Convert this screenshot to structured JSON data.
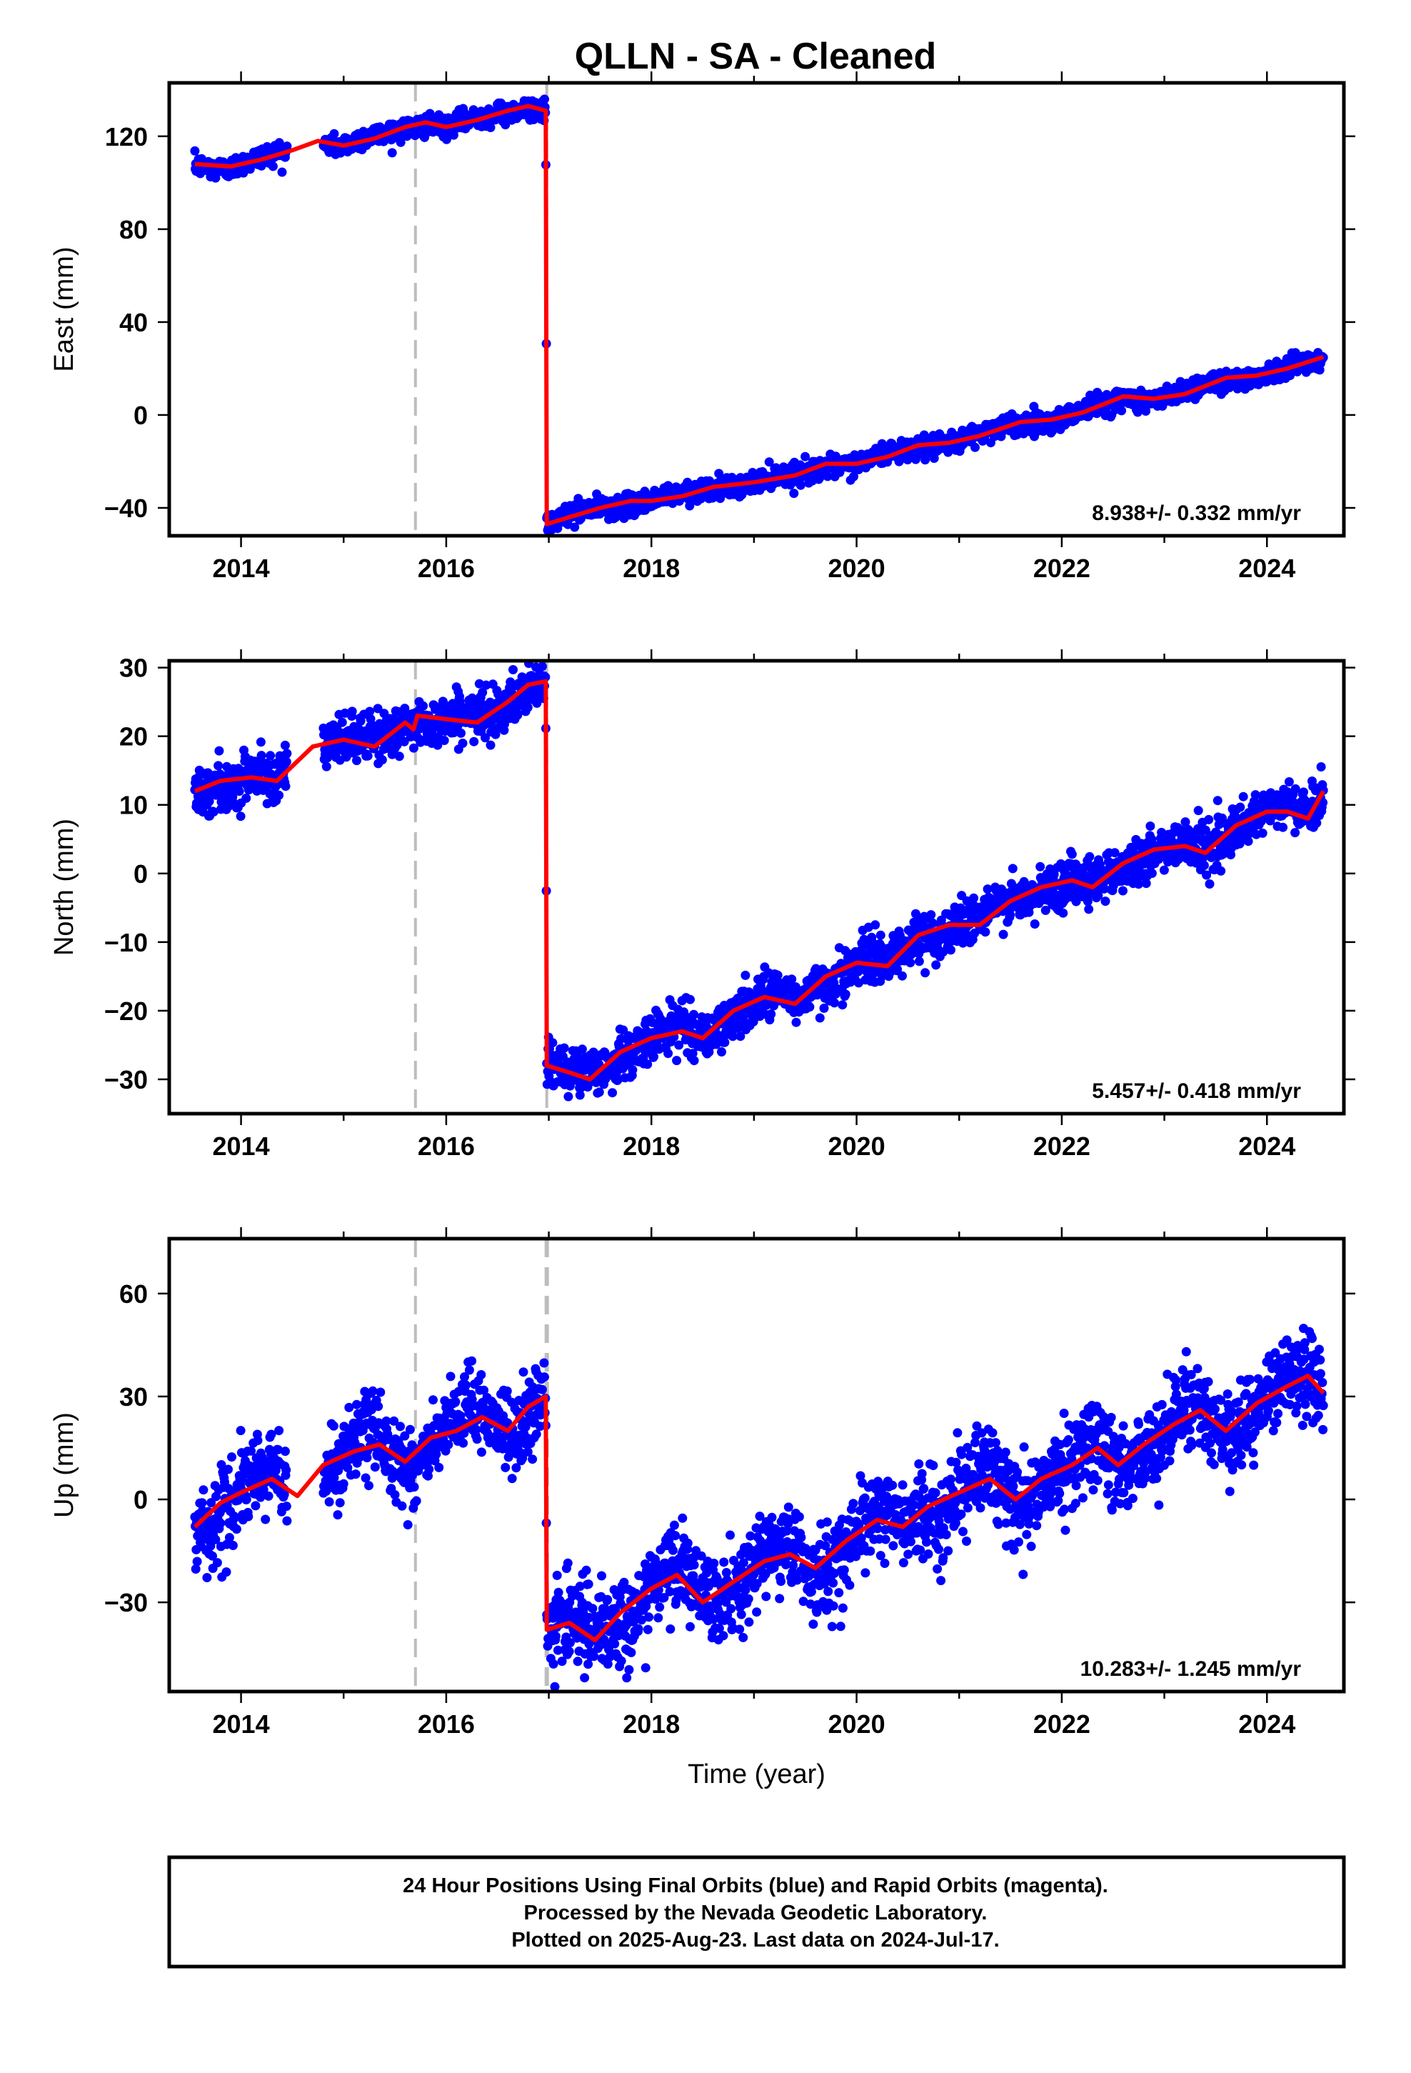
{
  "title": "QLLN  - SA - Cleaned",
  "caption": {
    "line1": "24 Hour Positions Using Final Orbits (blue) and Rapid Orbits (magenta).",
    "line2": "Processed by the Nevada Geodetic Laboratory.",
    "line3": "Plotted on 2025-Aug-23. Last data on 2024-Jul-17."
  },
  "colors": {
    "data": "#0000ff",
    "model": "#ff0000",
    "event_line": "#bdbdbd",
    "frame": "#000000"
  },
  "chart_data": [
    {
      "type": "scatter",
      "ylabel": "East (mm)",
      "xlabel": "",
      "rate": "8.938+/- 0.332 mm/yr",
      "xlim": [
        2013.3,
        2024.75
      ],
      "ylim": [
        -52,
        143
      ],
      "yticks": [
        -40,
        0,
        40,
        80,
        120
      ],
      "xticks": [
        2014,
        2016,
        2018,
        2020,
        2022,
        2024
      ],
      "event_lines": [
        2015.7,
        2016.98
      ],
      "noise": 2.2,
      "model": [
        [
          2013.55,
          108
        ],
        [
          2013.9,
          107
        ],
        [
          2014.2,
          110
        ],
        [
          2014.5,
          114
        ],
        [
          2014.75,
          118
        ],
        [
          2015.0,
          116
        ],
        [
          2015.3,
          119
        ],
        [
          2015.6,
          124
        ],
        [
          2015.8,
          126
        ],
        [
          2016.0,
          124
        ],
        [
          2016.3,
          127
        ],
        [
          2016.6,
          131
        ],
        [
          2016.8,
          133
        ],
        [
          2016.97,
          131
        ],
        [
          2016.98,
          -47
        ],
        [
          2017.2,
          -44
        ],
        [
          2017.5,
          -40
        ],
        [
          2017.8,
          -37
        ],
        [
          2018.0,
          -37
        ],
        [
          2018.3,
          -35
        ],
        [
          2018.6,
          -31
        ],
        [
          2019.0,
          -29
        ],
        [
          2019.4,
          -26
        ],
        [
          2019.7,
          -21
        ],
        [
          2020.0,
          -21
        ],
        [
          2020.3,
          -18
        ],
        [
          2020.6,
          -13
        ],
        [
          2020.9,
          -12
        ],
        [
          2021.2,
          -9
        ],
        [
          2021.6,
          -3
        ],
        [
          2021.9,
          -2
        ],
        [
          2022.2,
          1
        ],
        [
          2022.6,
          8
        ],
        [
          2022.9,
          7
        ],
        [
          2023.2,
          9
        ],
        [
          2023.6,
          16
        ],
        [
          2023.9,
          17
        ],
        [
          2024.2,
          20
        ],
        [
          2024.55,
          25
        ]
      ]
    },
    {
      "type": "scatter",
      "ylabel": "North (mm)",
      "xlabel": "",
      "rate": "5.457+/- 0.418 mm/yr",
      "xlim": [
        2013.3,
        2024.75
      ],
      "ylim": [
        -35,
        31
      ],
      "yticks": [
        -30,
        -20,
        -10,
        0,
        10,
        20,
        30
      ],
      "xticks": [
        2014,
        2016,
        2018,
        2020,
        2022,
        2024
      ],
      "event_lines": [
        2015.7,
        2016.98
      ],
      "noise": 1.7,
      "model": [
        [
          2013.55,
          12
        ],
        [
          2013.8,
          13.5
        ],
        [
          2014.1,
          14
        ],
        [
          2014.35,
          13.5
        ],
        [
          2014.7,
          18.5
        ],
        [
          2015.0,
          19.5
        ],
        [
          2015.3,
          18.5
        ],
        [
          2015.6,
          22
        ],
        [
          2015.68,
          21
        ],
        [
          2015.72,
          23
        ],
        [
          2016.0,
          22.5
        ],
        [
          2016.3,
          22
        ],
        [
          2016.6,
          25
        ],
        [
          2016.8,
          27.5
        ],
        [
          2016.97,
          28
        ],
        [
          2016.98,
          -28
        ],
        [
          2017.2,
          -29
        ],
        [
          2017.4,
          -30
        ],
        [
          2017.7,
          -26
        ],
        [
          2018.0,
          -24
        ],
        [
          2018.3,
          -23
        ],
        [
          2018.5,
          -24
        ],
        [
          2018.8,
          -20
        ],
        [
          2019.1,
          -18
        ],
        [
          2019.4,
          -19
        ],
        [
          2019.7,
          -15
        ],
        [
          2020.0,
          -13
        ],
        [
          2020.3,
          -13.5
        ],
        [
          2020.6,
          -9
        ],
        [
          2020.9,
          -7.5
        ],
        [
          2021.2,
          -7.5
        ],
        [
          2021.5,
          -4
        ],
        [
          2021.8,
          -2
        ],
        [
          2022.1,
          -1
        ],
        [
          2022.3,
          -2
        ],
        [
          2022.6,
          1.5
        ],
        [
          2022.9,
          3.5
        ],
        [
          2023.2,
          4
        ],
        [
          2023.4,
          3
        ],
        [
          2023.7,
          7
        ],
        [
          2024.0,
          9
        ],
        [
          2024.2,
          9
        ],
        [
          2024.4,
          8
        ],
        [
          2024.55,
          12
        ]
      ]
    },
    {
      "type": "scatter",
      "ylabel": "Up (mm)",
      "xlabel": "Time (year)",
      "rate": "10.283+/- 1.245 mm/yr",
      "xlim": [
        2013.3,
        2024.75
      ],
      "ylim": [
        -56,
        76
      ],
      "yticks": [
        -30,
        0,
        30,
        60
      ],
      "xticks": [
        2014,
        2016,
        2018,
        2020,
        2022,
        2024
      ],
      "event_lines": [
        2015.7,
        2016.98
      ],
      "noise": 6,
      "model": [
        [
          2013.55,
          -8
        ],
        [
          2013.8,
          -1
        ],
        [
          2014.0,
          2
        ],
        [
          2014.3,
          6
        ],
        [
          2014.55,
          1
        ],
        [
          2014.8,
          10
        ],
        [
          2015.1,
          14
        ],
        [
          2015.35,
          16
        ],
        [
          2015.6,
          11
        ],
        [
          2015.85,
          18
        ],
        [
          2016.1,
          20
        ],
        [
          2016.35,
          24
        ],
        [
          2016.6,
          20
        ],
        [
          2016.8,
          27
        ],
        [
          2016.97,
          30
        ],
        [
          2016.98,
          -38
        ],
        [
          2017.2,
          -36
        ],
        [
          2017.45,
          -41
        ],
        [
          2017.7,
          -33
        ],
        [
          2018.0,
          -26
        ],
        [
          2018.25,
          -22
        ],
        [
          2018.5,
          -30
        ],
        [
          2018.8,
          -24
        ],
        [
          2019.1,
          -18
        ],
        [
          2019.35,
          -16
        ],
        [
          2019.6,
          -20
        ],
        [
          2019.9,
          -12
        ],
        [
          2020.2,
          -6
        ],
        [
          2020.45,
          -8
        ],
        [
          2020.7,
          -2
        ],
        [
          2021.0,
          2
        ],
        [
          2021.3,
          6
        ],
        [
          2021.55,
          0
        ],
        [
          2021.8,
          6
        ],
        [
          2022.1,
          10
        ],
        [
          2022.35,
          15
        ],
        [
          2022.55,
          10
        ],
        [
          2022.8,
          16
        ],
        [
          2023.1,
          22
        ],
        [
          2023.35,
          26
        ],
        [
          2023.6,
          20
        ],
        [
          2023.9,
          28
        ],
        [
          2024.2,
          33
        ],
        [
          2024.4,
          36
        ],
        [
          2024.55,
          31
        ]
      ]
    }
  ]
}
